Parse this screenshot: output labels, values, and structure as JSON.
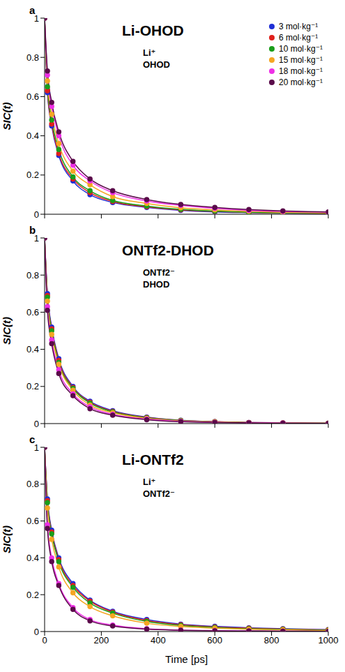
{
  "chart_data": [
    {
      "type": "line",
      "panel": "a",
      "title": "Li-OHOD",
      "annotations": [
        "Li⁺",
        "OHOD"
      ],
      "ylabel": "SIC(t)",
      "tick_labels": "y",
      "legend": "top-right",
      "marker": "circle",
      "xlim": [
        0,
        1000
      ],
      "xticks": [
        0,
        200,
        400,
        600,
        800,
        1000
      ],
      "ylim": [
        0,
        1
      ],
      "yticks": [
        0,
        0.2,
        0.4,
        0.6,
        0.8,
        1
      ],
      "x": [
        0,
        10,
        25,
        50,
        100,
        160,
        240,
        360,
        480,
        600,
        720,
        840,
        1000
      ],
      "series": [
        {
          "name": "3 mol·kg⁻¹",
          "color": "#1f2fd6",
          "values": [
            1,
            0.62,
            0.45,
            0.3,
            0.17,
            0.1,
            0.06,
            0.035,
            0.02,
            0.012,
            0.008,
            0.005,
            0.003
          ]
        },
        {
          "name": "6 mol·kg⁻¹",
          "color": "#e0201b",
          "values": [
            1,
            0.63,
            0.46,
            0.31,
            0.18,
            0.11,
            0.065,
            0.038,
            0.022,
            0.014,
            0.009,
            0.006,
            0.004
          ]
        },
        {
          "name": "10 mol·kg⁻¹",
          "color": "#1a9e1a",
          "values": [
            1,
            0.65,
            0.48,
            0.33,
            0.19,
            0.12,
            0.07,
            0.042,
            0.025,
            0.016,
            0.01,
            0.007,
            0.005
          ]
        },
        {
          "name": "15 mol·kg⁻¹",
          "color": "#f5a623",
          "values": [
            1,
            0.68,
            0.51,
            0.36,
            0.22,
            0.15,
            0.09,
            0.055,
            0.033,
            0.022,
            0.015,
            0.01,
            0.007
          ]
        },
        {
          "name": "18 mol·kg⁻¹",
          "color": "#ee2fe6",
          "values": [
            1,
            0.71,
            0.55,
            0.4,
            0.25,
            0.17,
            0.11,
            0.068,
            0.045,
            0.03,
            0.02,
            0.014,
            0.01
          ]
        },
        {
          "name": "20 mol·kg⁻¹",
          "color": "#5a0a4a",
          "values": [
            1,
            0.73,
            0.57,
            0.42,
            0.27,
            0.18,
            0.12,
            0.075,
            0.05,
            0.035,
            0.024,
            0.017,
            0.012
          ]
        }
      ]
    },
    {
      "type": "line",
      "panel": "b",
      "title": "ONTf2-DHOD",
      "annotations": [
        "ONTf2⁻",
        "DHOD"
      ],
      "ylabel": "SIC(t)",
      "tick_labels": "y",
      "marker": "circle",
      "xlim": [
        0,
        1000
      ],
      "xticks": [
        0,
        200,
        400,
        600,
        800,
        1000
      ],
      "ylim": [
        0,
        1
      ],
      "yticks": [
        0,
        0.2,
        0.4,
        0.6,
        0.8,
        1
      ],
      "x": [
        0,
        10,
        25,
        50,
        100,
        160,
        240,
        360,
        480,
        600,
        720,
        840,
        1000
      ],
      "series": [
        {
          "name": "3 mol·kg⁻¹",
          "color": "#1f2fd6",
          "values": [
            1,
            0.7,
            0.52,
            0.35,
            0.2,
            0.12,
            0.07,
            0.035,
            0.018,
            0.01,
            0.006,
            0.004,
            0.002
          ]
        },
        {
          "name": "6 mol·kg⁻¹",
          "color": "#e0201b",
          "values": [
            1,
            0.69,
            0.51,
            0.34,
            0.195,
            0.115,
            0.066,
            0.033,
            0.017,
            0.01,
            0.006,
            0.004,
            0.002
          ]
        },
        {
          "name": "10 mol·kg⁻¹",
          "color": "#1a9e1a",
          "values": [
            1,
            0.68,
            0.5,
            0.33,
            0.19,
            0.11,
            0.063,
            0.031,
            0.016,
            0.009,
            0.005,
            0.003,
            0.002
          ]
        },
        {
          "name": "15 mol·kg⁻¹",
          "color": "#f5a623",
          "values": [
            1,
            0.66,
            0.48,
            0.32,
            0.18,
            0.1,
            0.058,
            0.028,
            0.014,
            0.008,
            0.005,
            0.003,
            0.002
          ]
        },
        {
          "name": "18 mol·kg⁻¹",
          "color": "#ee2fe6",
          "values": [
            1,
            0.63,
            0.45,
            0.29,
            0.16,
            0.09,
            0.05,
            0.024,
            0.012,
            0.007,
            0.004,
            0.003,
            0.001
          ]
        },
        {
          "name": "20 mol·kg⁻¹",
          "color": "#5a0a4a",
          "values": [
            1,
            0.61,
            0.43,
            0.27,
            0.15,
            0.08,
            0.045,
            0.021,
            0.01,
            0.006,
            0.004,
            0.002,
            0.001
          ]
        }
      ]
    },
    {
      "type": "line",
      "panel": "c",
      "title": "Li-ONTf2",
      "annotations": [
        "Li⁺",
        "ONTf2⁻"
      ],
      "ylabel": "SIC(t)",
      "xlabel": "Time [ps]",
      "marker": "circle",
      "xlim": [
        0,
        1000
      ],
      "xticks": [
        0,
        200,
        400,
        600,
        800,
        1000
      ],
      "ylim": [
        0,
        1
      ],
      "yticks": [
        0,
        0.2,
        0.4,
        0.6,
        0.8,
        1
      ],
      "x": [
        0,
        10,
        25,
        50,
        100,
        160,
        240,
        360,
        480,
        600,
        720,
        840,
        1000
      ],
      "series": [
        {
          "name": "3 mol·kg⁻¹",
          "color": "#1f2fd6",
          "values": [
            1,
            0.72,
            0.55,
            0.4,
            0.26,
            0.17,
            0.11,
            0.065,
            0.04,
            0.028,
            0.02,
            0.015,
            0.01
          ]
        },
        {
          "name": "6 mol·kg⁻¹",
          "color": "#e0201b",
          "values": [
            1,
            0.71,
            0.54,
            0.39,
            0.25,
            0.165,
            0.105,
            0.06,
            0.037,
            0.025,
            0.018,
            0.013,
            0.009
          ]
        },
        {
          "name": "10 mol·kg⁻¹",
          "color": "#1a9e1a",
          "values": [
            1,
            0.7,
            0.53,
            0.38,
            0.24,
            0.155,
            0.1,
            0.055,
            0.033,
            0.022,
            0.015,
            0.011,
            0.008
          ]
        },
        {
          "name": "15 mol·kg⁻¹",
          "color": "#f5a623",
          "values": [
            1,
            0.67,
            0.5,
            0.35,
            0.21,
            0.135,
            0.085,
            0.045,
            0.027,
            0.018,
            0.012,
            0.009,
            0.006
          ]
        },
        {
          "name": "18 mol·kg⁻¹",
          "color": "#ee2fe6",
          "values": [
            1,
            0.58,
            0.4,
            0.26,
            0.13,
            0.065,
            0.035,
            0.015,
            0.008,
            0.005,
            0.003,
            0.002,
            0.001
          ]
        },
        {
          "name": "20 mol·kg⁻¹",
          "color": "#5a0a4a",
          "values": [
            1,
            0.56,
            0.38,
            0.25,
            0.12,
            0.058,
            0.03,
            0.013,
            0.007,
            0.004,
            0.003,
            0.002,
            0.001
          ]
        }
      ]
    }
  ]
}
